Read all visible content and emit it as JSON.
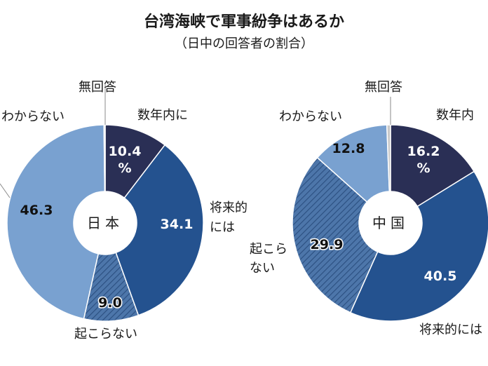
{
  "title": "台湾海峡で軍事紛争はあるか",
  "subtitle": "（日中の回答者の割合）",
  "colors": {
    "soon": "#2a2f55",
    "future": "#24528f",
    "none": "#4d76aa",
    "dontknow": "#79a1d0",
    "noanswer": "#c9c9c9"
  },
  "chart_data": [
    {
      "type": "pie",
      "center_label": "日本",
      "title": "台湾海峡で軍事紛争はあるか",
      "subtitle": "（日中の回答者の割合）",
      "slices": [
        {
          "key": "soon",
          "label": "数年内に",
          "value": 10.4,
          "display": "10.4 %"
        },
        {
          "key": "future",
          "label": "将来的には",
          "value": 34.1,
          "display": "34.1"
        },
        {
          "key": "none",
          "label": "起こらない",
          "value": 9.0,
          "display": "9.0"
        },
        {
          "key": "dontknow",
          "label": "わからない",
          "value": 46.3,
          "display": "46.3"
        },
        {
          "key": "noanswer",
          "label": "無回答",
          "value": 0.2,
          "display": ""
        }
      ]
    },
    {
      "type": "pie",
      "center_label": "中国",
      "slices": [
        {
          "key": "soon",
          "label": "数年内に",
          "value": 16.2,
          "display": "16.2 %"
        },
        {
          "key": "future",
          "label": "将来的には",
          "value": 40.5,
          "display": "40.5"
        },
        {
          "key": "none",
          "label": "起こらない",
          "value": 29.9,
          "display": "29.9"
        },
        {
          "key": "dontknow",
          "label": "わからない",
          "value": 12.8,
          "display": "12.8"
        },
        {
          "key": "noanswer",
          "label": "無回答",
          "value": 0.6,
          "display": ""
        }
      ]
    }
  ],
  "labels": {
    "jp_noanswer": "無回答",
    "jp_soon": "数年内に",
    "jp_dontknow": "わからない",
    "jp_future_1": "将来的",
    "jp_future_2": "には",
    "jp_none": "起こらない",
    "cn_noanswer": "無回答",
    "cn_soon": "数年内",
    "cn_dontknow": "わからない",
    "cn_none_1": "起こら",
    "cn_none_2": "ない",
    "cn_future": "将来的には"
  }
}
